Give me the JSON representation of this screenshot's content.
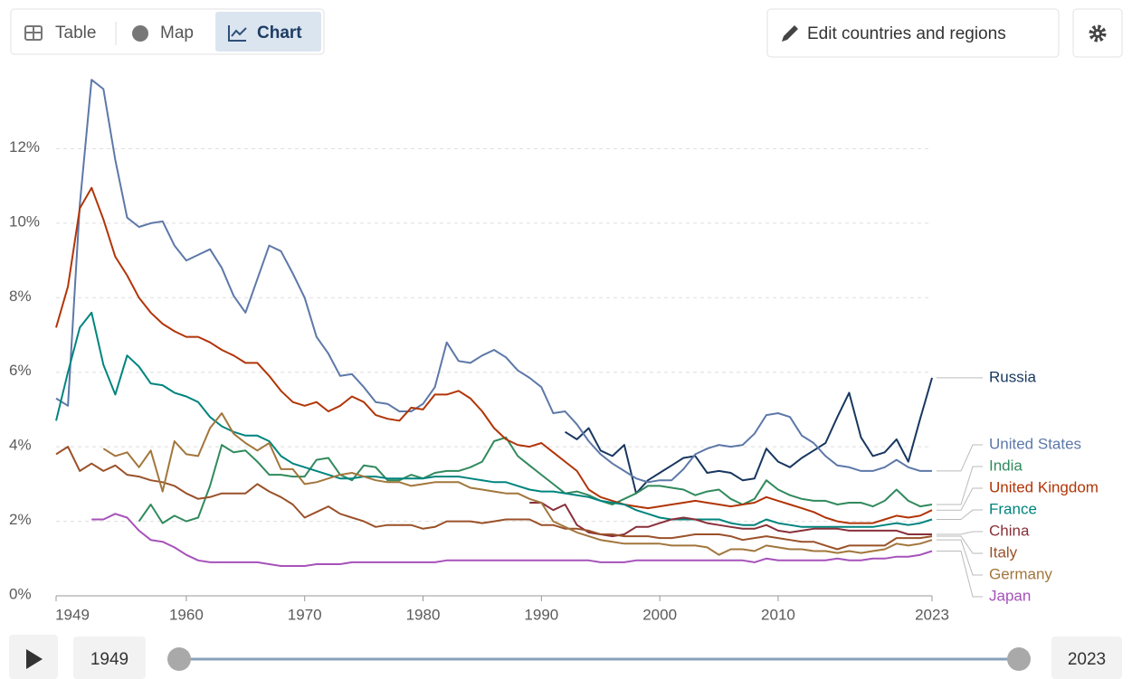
{
  "chart_data": {
    "type": "line",
    "x": [
      1949,
      1950,
      1951,
      1952,
      1953,
      1954,
      1955,
      1956,
      1957,
      1958,
      1959,
      1960,
      1961,
      1962,
      1963,
      1964,
      1965,
      1966,
      1967,
      1968,
      1969,
      1970,
      1971,
      1972,
      1973,
      1974,
      1975,
      1976,
      1977,
      1978,
      1979,
      1980,
      1981,
      1982,
      1983,
      1984,
      1985,
      1986,
      1987,
      1988,
      1989,
      1990,
      1991,
      1992,
      1993,
      1994,
      1995,
      1996,
      1997,
      1998,
      1999,
      2000,
      2001,
      2002,
      2003,
      2004,
      2005,
      2006,
      2007,
      2008,
      2009,
      2010,
      2011,
      2012,
      2013,
      2014,
      2015,
      2016,
      2017,
      2018,
      2019,
      2020,
      2021,
      2022,
      2023
    ],
    "xlim": [
      1949,
      2023
    ],
    "xticks": [
      1949,
      1960,
      1970,
      1980,
      1990,
      2000,
      2010,
      2023
    ],
    "ylim": [
      0,
      14
    ],
    "yticks": [
      {
        "value": 0,
        "label": "0%"
      },
      {
        "value": 2,
        "label": "2%"
      },
      {
        "value": 4,
        "label": "4%"
      },
      {
        "value": 6,
        "label": "6%"
      },
      {
        "value": 8,
        "label": "8%"
      },
      {
        "value": 10,
        "label": "10%"
      },
      {
        "value": 12,
        "label": "12%"
      }
    ],
    "grid": true,
    "series": [
      {
        "name": "Russia",
        "color": "#18375f",
        "values": [
          null,
          null,
          null,
          null,
          null,
          null,
          null,
          null,
          null,
          null,
          null,
          null,
          null,
          null,
          null,
          null,
          null,
          null,
          null,
          null,
          null,
          null,
          null,
          null,
          null,
          null,
          null,
          null,
          null,
          null,
          null,
          null,
          null,
          null,
          null,
          null,
          null,
          null,
          null,
          null,
          null,
          null,
          null,
          4.4,
          4.2,
          4.5,
          3.9,
          3.75,
          4.05,
          2.75,
          3.1,
          3.3,
          3.5,
          3.7,
          3.75,
          3.3,
          3.35,
          3.3,
          3.1,
          3.15,
          3.95,
          3.6,
          3.45,
          3.7,
          3.9,
          4.1,
          4.8,
          5.45,
          4.25,
          3.75,
          3.85,
          4.2,
          3.6,
          4.75,
          5.85
        ]
      },
      {
        "name": "United States",
        "color": "#5d78a8",
        "values": [
          5.3,
          5.1,
          10.5,
          13.85,
          13.6,
          11.7,
          10.15,
          9.9,
          10.0,
          10.05,
          9.4,
          9.0,
          9.15,
          9.3,
          8.8,
          8.05,
          7.6,
          8.5,
          9.4,
          9.25,
          8.65,
          8.0,
          6.95,
          6.5,
          5.9,
          5.95,
          5.6,
          5.2,
          5.15,
          4.95,
          4.95,
          5.15,
          5.6,
          6.8,
          6.3,
          6.25,
          6.45,
          6.6,
          6.4,
          6.05,
          5.85,
          5.6,
          4.9,
          4.95,
          4.6,
          4.15,
          3.8,
          3.55,
          3.35,
          3.15,
          3.05,
          3.1,
          3.1,
          3.4,
          3.8,
          3.95,
          4.05,
          4.0,
          4.05,
          4.35,
          4.85,
          4.9,
          4.8,
          4.3,
          4.1,
          3.75,
          3.5,
          3.45,
          3.35,
          3.35,
          3.45,
          3.65,
          3.45,
          3.35,
          3.35
        ]
      },
      {
        "name": "India",
        "color": "#318a5d",
        "values": [
          null,
          null,
          null,
          null,
          null,
          null,
          null,
          2.0,
          2.45,
          1.95,
          2.15,
          2.0,
          2.1,
          2.95,
          4.05,
          3.85,
          3.9,
          3.6,
          3.25,
          3.25,
          3.2,
          3.2,
          3.65,
          3.7,
          3.25,
          3.1,
          3.5,
          3.45,
          3.1,
          3.1,
          3.25,
          3.15,
          3.3,
          3.35,
          3.35,
          3.45,
          3.6,
          4.15,
          4.25,
          3.75,
          3.5,
          3.25,
          3.0,
          2.75,
          2.8,
          2.7,
          2.55,
          2.45,
          2.6,
          2.75,
          2.95,
          2.95,
          2.9,
          2.85,
          2.7,
          2.8,
          2.85,
          2.6,
          2.45,
          2.6,
          3.1,
          2.85,
          2.7,
          2.6,
          2.55,
          2.55,
          2.45,
          2.5,
          2.5,
          2.4,
          2.55,
          2.85,
          2.55,
          2.4,
          2.45
        ]
      },
      {
        "name": "United Kingdom",
        "color": "#b13507",
        "values": [
          7.2,
          8.3,
          10.4,
          10.95,
          10.1,
          9.1,
          8.6,
          8.0,
          7.6,
          7.3,
          7.1,
          6.95,
          6.95,
          6.8,
          6.6,
          6.45,
          6.25,
          6.25,
          5.9,
          5.5,
          5.2,
          5.1,
          5.2,
          4.95,
          5.1,
          5.35,
          5.2,
          4.85,
          4.75,
          4.7,
          5.05,
          5.0,
          5.4,
          5.4,
          5.5,
          5.3,
          4.95,
          4.5,
          4.2,
          4.05,
          4.0,
          4.1,
          3.85,
          3.6,
          3.35,
          2.85,
          2.65,
          2.55,
          2.45,
          2.4,
          2.35,
          2.4,
          2.45,
          2.5,
          2.55,
          2.5,
          2.45,
          2.4,
          2.45,
          2.5,
          2.65,
          2.55,
          2.45,
          2.35,
          2.25,
          2.1,
          2.0,
          1.95,
          1.95,
          1.95,
          2.05,
          2.15,
          2.1,
          2.15,
          2.3
        ]
      },
      {
        "name": "France",
        "color": "#00847e",
        "values": [
          4.7,
          6.0,
          7.2,
          7.6,
          6.2,
          5.4,
          6.45,
          6.15,
          5.7,
          5.65,
          5.45,
          5.35,
          5.2,
          4.8,
          4.55,
          4.4,
          4.3,
          4.3,
          4.15,
          3.75,
          3.55,
          3.45,
          3.35,
          3.25,
          3.15,
          3.15,
          3.2,
          3.2,
          3.15,
          3.15,
          3.15,
          3.15,
          3.2,
          3.2,
          3.2,
          3.15,
          3.1,
          3.05,
          3.05,
          2.95,
          2.85,
          2.8,
          2.8,
          2.75,
          2.7,
          2.65,
          2.55,
          2.5,
          2.45,
          2.3,
          2.2,
          2.1,
          2.05,
          2.05,
          2.05,
          2.05,
          2.05,
          1.95,
          1.9,
          1.9,
          2.05,
          1.95,
          1.9,
          1.85,
          1.85,
          1.85,
          1.85,
          1.85,
          1.85,
          1.85,
          1.9,
          1.95,
          1.9,
          1.95,
          2.05
        ]
      },
      {
        "name": "China",
        "color": "#883039",
        "values": [
          null,
          null,
          null,
          null,
          null,
          null,
          null,
          null,
          null,
          null,
          null,
          null,
          null,
          null,
          null,
          null,
          null,
          null,
          null,
          null,
          null,
          null,
          null,
          null,
          null,
          null,
          null,
          null,
          null,
          null,
          null,
          null,
          null,
          null,
          null,
          null,
          null,
          null,
          null,
          null,
          2.5,
          2.5,
          2.3,
          2.45,
          1.9,
          1.7,
          1.65,
          1.6,
          1.65,
          1.85,
          1.85,
          1.95,
          2.05,
          2.1,
          2.05,
          1.95,
          1.9,
          1.85,
          1.8,
          1.8,
          1.9,
          1.75,
          1.7,
          1.75,
          1.8,
          1.8,
          1.8,
          1.75,
          1.75,
          1.75,
          1.75,
          1.75,
          1.65,
          1.65,
          1.65
        ]
      },
      {
        "name": "Italy",
        "color": "#9a5129",
        "values": [
          3.8,
          4.0,
          3.35,
          3.55,
          3.35,
          3.5,
          3.25,
          3.2,
          3.1,
          3.05,
          2.95,
          2.75,
          2.6,
          2.65,
          2.75,
          2.75,
          2.75,
          3.0,
          2.8,
          2.65,
          2.45,
          2.1,
          2.25,
          2.4,
          2.2,
          2.1,
          2.0,
          1.85,
          1.9,
          1.9,
          1.9,
          1.8,
          1.85,
          2.0,
          2.0,
          2.0,
          1.95,
          2.0,
          2.05,
          2.05,
          2.05,
          1.9,
          1.9,
          1.8,
          1.8,
          1.75,
          1.65,
          1.65,
          1.6,
          1.6,
          1.6,
          1.55,
          1.55,
          1.6,
          1.65,
          1.65,
          1.65,
          1.6,
          1.5,
          1.55,
          1.6,
          1.55,
          1.5,
          1.45,
          1.45,
          1.35,
          1.25,
          1.35,
          1.35,
          1.35,
          1.35,
          1.55,
          1.55,
          1.55,
          1.6
        ]
      },
      {
        "name": "Germany",
        "color": "#a2763c",
        "values": [
          null,
          null,
          null,
          null,
          3.95,
          3.75,
          3.85,
          3.45,
          3.9,
          2.8,
          4.15,
          3.8,
          3.75,
          4.5,
          4.9,
          4.35,
          4.1,
          3.9,
          4.1,
          3.4,
          3.4,
          3.0,
          3.05,
          3.15,
          3.25,
          3.3,
          3.2,
          3.1,
          3.05,
          3.05,
          2.95,
          3.0,
          3.05,
          3.05,
          3.05,
          2.9,
          2.85,
          2.8,
          2.75,
          2.75,
          2.6,
          2.5,
          2.0,
          1.85,
          1.7,
          1.6,
          1.5,
          1.45,
          1.4,
          1.4,
          1.4,
          1.4,
          1.35,
          1.35,
          1.35,
          1.3,
          1.1,
          1.25,
          1.25,
          1.2,
          1.35,
          1.3,
          1.25,
          1.25,
          1.2,
          1.2,
          1.15,
          1.2,
          1.15,
          1.2,
          1.25,
          1.4,
          1.35,
          1.4,
          1.5
        ]
      },
      {
        "name": "Japan",
        "color": "#a652ba",
        "values": [
          null,
          null,
          null,
          2.05,
          2.05,
          2.2,
          2.1,
          1.75,
          1.5,
          1.45,
          1.3,
          1.1,
          0.95,
          0.9,
          0.9,
          0.9,
          0.9,
          0.9,
          0.85,
          0.8,
          0.8,
          0.8,
          0.85,
          0.85,
          0.85,
          0.9,
          0.9,
          0.9,
          0.9,
          0.9,
          0.9,
          0.9,
          0.9,
          0.95,
          0.95,
          0.95,
          0.95,
          0.95,
          0.95,
          0.95,
          0.95,
          0.95,
          0.95,
          0.95,
          0.95,
          0.95,
          0.9,
          0.9,
          0.9,
          0.95,
          0.95,
          0.95,
          0.95,
          0.95,
          0.95,
          0.95,
          0.95,
          0.95,
          0.95,
          0.9,
          1.0,
          0.95,
          0.95,
          0.95,
          0.95,
          0.95,
          1.0,
          0.95,
          0.95,
          1.0,
          1.0,
          1.05,
          1.05,
          1.1,
          1.2
        ]
      }
    ]
  },
  "ui": {
    "tabs": [
      "Table",
      "Map",
      "Chart"
    ],
    "edit_button": "Edit countries and regions",
    "timeline_start": "1949",
    "timeline_end": "2023"
  }
}
